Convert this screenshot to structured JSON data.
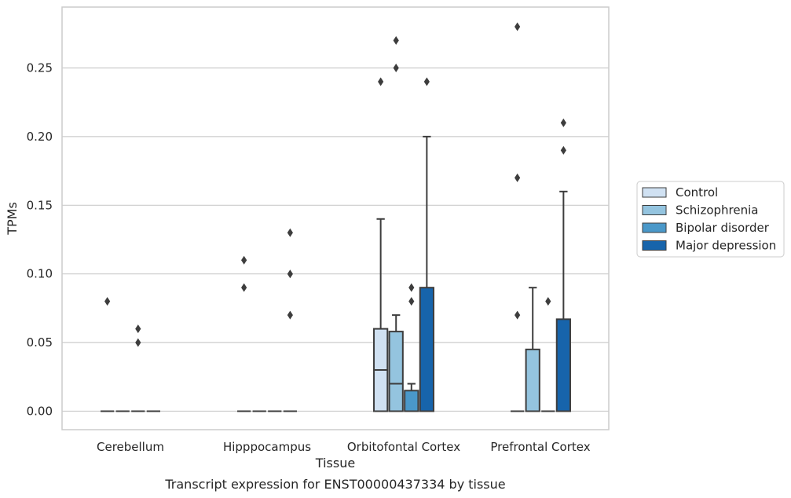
{
  "chart_data": {
    "type": "box",
    "title": "Transcript expression for ENST00000437334 by tissue",
    "xlabel": "Tissue",
    "ylabel": "TPMs",
    "ylim": [
      -0.014,
      0.295
    ],
    "yticks": [
      "0.00",
      "0.05",
      "0.10",
      "0.15",
      "0.20",
      "0.25"
    ],
    "grid": true,
    "legend_position": "right",
    "categories": [
      "Cerebellum",
      "Hipppocampus",
      "Orbitofontal Cortex",
      "Prefrontal Cortex"
    ],
    "series": [
      {
        "name": "Control",
        "color": "#d0e1f2",
        "boxes": [
          {
            "q1": 0,
            "median": 0,
            "q3": 0,
            "whislo": 0,
            "whishi": 0,
            "fliers": [
              0.08
            ]
          },
          {
            "q1": 0,
            "median": 0,
            "q3": 0,
            "whislo": 0,
            "whishi": 0,
            "fliers": [
              0.11,
              0.09
            ]
          },
          {
            "q1": 0,
            "median": 0.03,
            "q3": 0.06,
            "whislo": 0,
            "whishi": 0.14,
            "fliers": [
              0.24
            ]
          },
          {
            "q1": 0,
            "median": 0,
            "q3": 0,
            "whislo": 0,
            "whishi": 0,
            "fliers": [
              0.28,
              0.17,
              0.07
            ]
          }
        ]
      },
      {
        "name": "Schizophrenia",
        "color": "#94c4df",
        "boxes": [
          {
            "q1": 0,
            "median": 0,
            "q3": 0,
            "whislo": 0,
            "whishi": 0,
            "fliers": []
          },
          {
            "q1": 0,
            "median": 0,
            "q3": 0,
            "whislo": 0,
            "whishi": 0,
            "fliers": []
          },
          {
            "q1": 0,
            "median": 0.02,
            "q3": 0.058,
            "whislo": 0,
            "whishi": 0.07,
            "fliers": [
              0.27,
              0.25
            ]
          },
          {
            "q1": 0,
            "median": 0,
            "q3": 0.045,
            "whislo": 0,
            "whishi": 0.09,
            "fliers": []
          }
        ]
      },
      {
        "name": "Bipolar disorder",
        "color": "#4a98c9",
        "boxes": [
          {
            "q1": 0,
            "median": 0,
            "q3": 0,
            "whislo": 0,
            "whishi": 0,
            "fliers": [
              0.06,
              0.05
            ]
          },
          {
            "q1": 0,
            "median": 0,
            "q3": 0,
            "whislo": 0,
            "whishi": 0,
            "fliers": []
          },
          {
            "q1": 0,
            "median": 0,
            "q3": 0.015,
            "whislo": 0,
            "whishi": 0.02,
            "fliers": [
              0.09,
              0.08
            ]
          },
          {
            "q1": 0,
            "median": 0,
            "q3": 0,
            "whislo": 0,
            "whishi": 0,
            "fliers": [
              0.08
            ]
          }
        ]
      },
      {
        "name": "Major depression",
        "color": "#1764ab",
        "boxes": [
          {
            "q1": 0,
            "median": 0,
            "q3": 0,
            "whislo": 0,
            "whishi": 0,
            "fliers": []
          },
          {
            "q1": 0,
            "median": 0,
            "q3": 0,
            "whislo": 0,
            "whishi": 0,
            "fliers": [
              0.13,
              0.1,
              0.07
            ]
          },
          {
            "q1": 0,
            "median": 0,
            "q3": 0.09,
            "whislo": 0,
            "whishi": 0.2,
            "fliers": [
              0.24
            ]
          },
          {
            "q1": 0,
            "median": 0,
            "q3": 0.067,
            "whislo": 0,
            "whishi": 0.16,
            "fliers": [
              0.21,
              0.19
            ]
          }
        ]
      }
    ]
  }
}
